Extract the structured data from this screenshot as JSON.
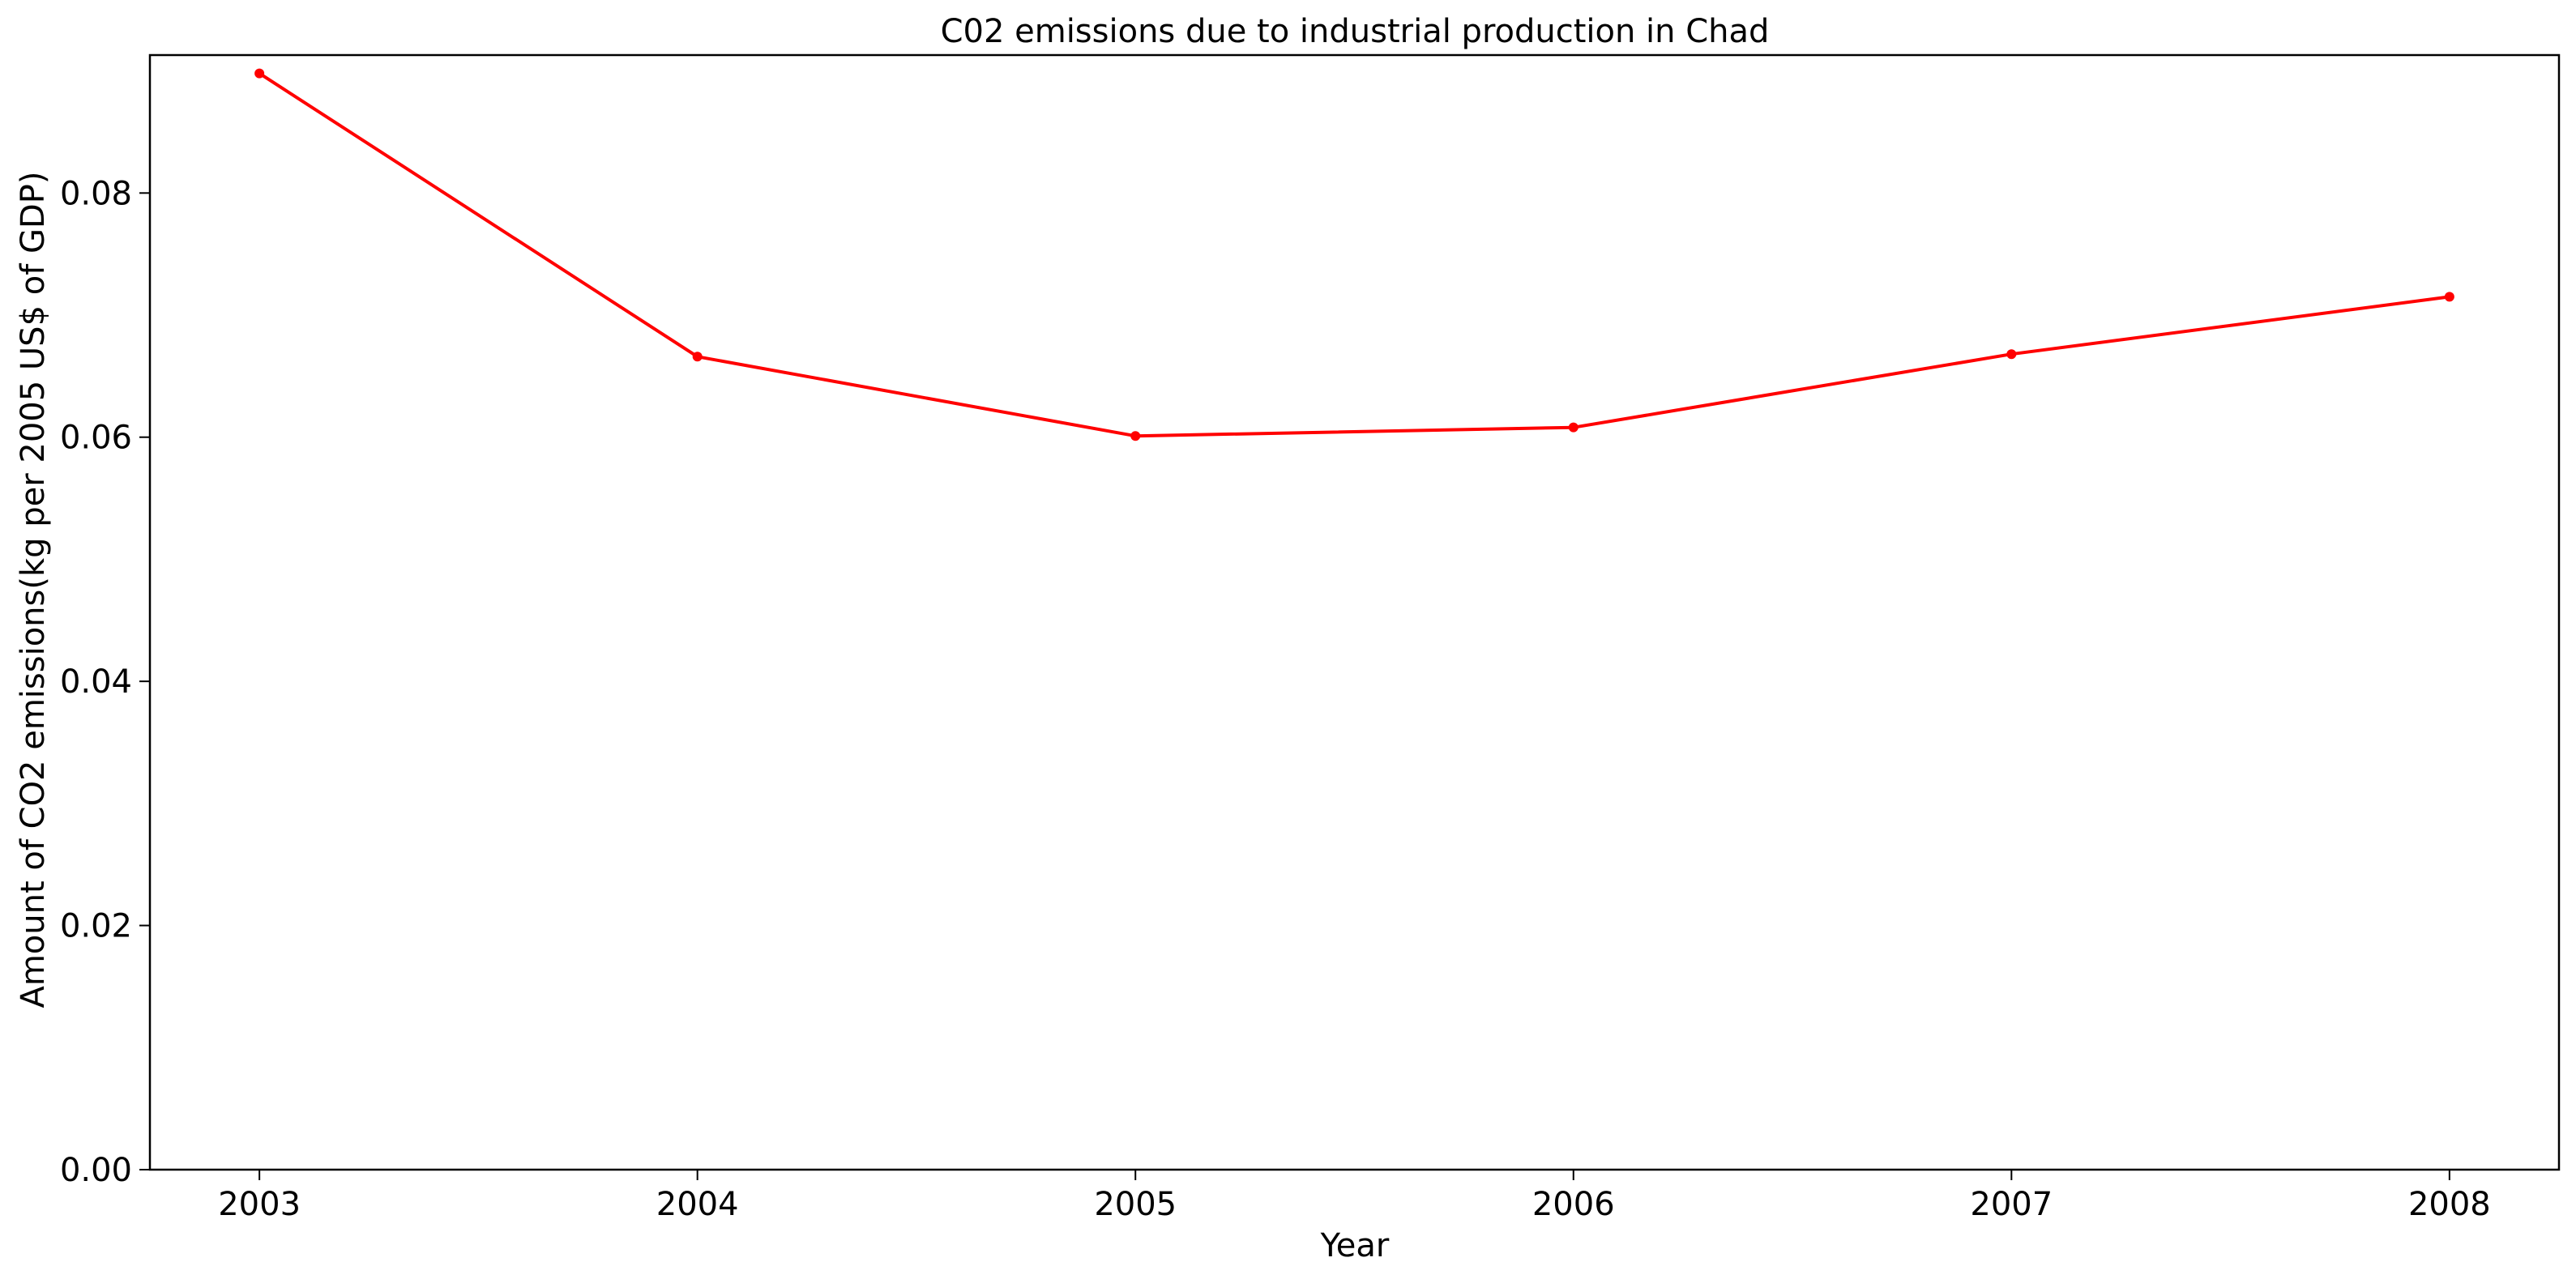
{
  "chart_data": {
    "type": "line",
    "title": "C02 emissions due to industrial production in Chad",
    "xlabel": "Year",
    "ylabel": "Amount of CO2 emissions(kg per 2005 US$ of GDP)",
    "x": [
      2003,
      2004,
      2005,
      2006,
      2007,
      2008
    ],
    "series": [
      {
        "values": [
          0.0898,
          0.0666,
          0.0601,
          0.0608,
          0.0668,
          0.0715
        ],
        "color": "#ff0000"
      }
    ],
    "xlim": [
      2002.75,
      2008.25
    ],
    "ylim": [
      0.0,
      0.0913
    ],
    "xticks": [
      "2003",
      "2004",
      "2005",
      "2006",
      "2007",
      "2008"
    ],
    "yticks": [
      "0.00",
      "0.02",
      "0.04",
      "0.06",
      "0.08"
    ],
    "ytick_values": [
      0.0,
      0.02,
      0.04,
      0.06,
      0.08
    ],
    "grid": false,
    "legend": "none"
  }
}
